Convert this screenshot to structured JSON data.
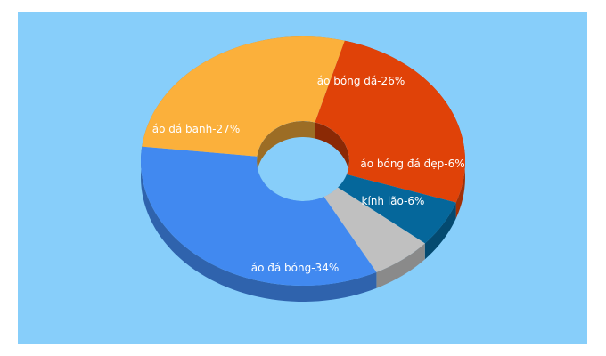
{
  "chart_data": {
    "type": "pie",
    "donut": true,
    "three_d": true,
    "background": "#87CEFA",
    "slices": [
      {
        "label": "áo bóng đá-26%",
        "value": 26,
        "color": "#E04208"
      },
      {
        "label": "áo bóng đá đẹp-6%",
        "value": 6,
        "color": "#05679B"
      },
      {
        "label": "kính lão-6%",
        "value": 6,
        "color": "#C0C0C0"
      },
      {
        "label": "áo đá bóng-34%",
        "value": 34,
        "color": "#4189F0"
      },
      {
        "label": "áo đá banh-27%",
        "value": 27,
        "color": "#FBB03B"
      }
    ]
  }
}
